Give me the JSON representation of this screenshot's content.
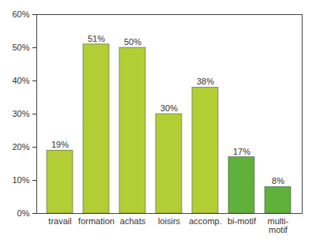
{
  "chart_data": {
    "type": "bar",
    "categories": [
      "travail",
      "formation",
      "achats",
      "loisirs",
      "accomp.",
      "bi-motif",
      "multi-\nmotif"
    ],
    "values": [
      19,
      51,
      50,
      30,
      38,
      17,
      8
    ],
    "value_labels": [
      "19%",
      "51%",
      "50%",
      "30%",
      "38%",
      "17%",
      "8%"
    ],
    "colors": [
      "#b3cd35",
      "#b3cd35",
      "#b3cd35",
      "#b3cd35",
      "#b3cd35",
      "#5fb139",
      "#5fb139"
    ],
    "ylim": [
      0,
      60
    ],
    "yticks": [
      {
        "value": 0,
        "label": "0%"
      },
      {
        "value": 10,
        "label": "10%"
      },
      {
        "value": 20,
        "label": "20%"
      },
      {
        "value": 30,
        "label": "30%"
      },
      {
        "value": 40,
        "label": "40%"
      },
      {
        "value": 50,
        "label": "50%"
      },
      {
        "value": 60,
        "label": "60%"
      }
    ],
    "grid": false,
    "data_labels": true
  }
}
